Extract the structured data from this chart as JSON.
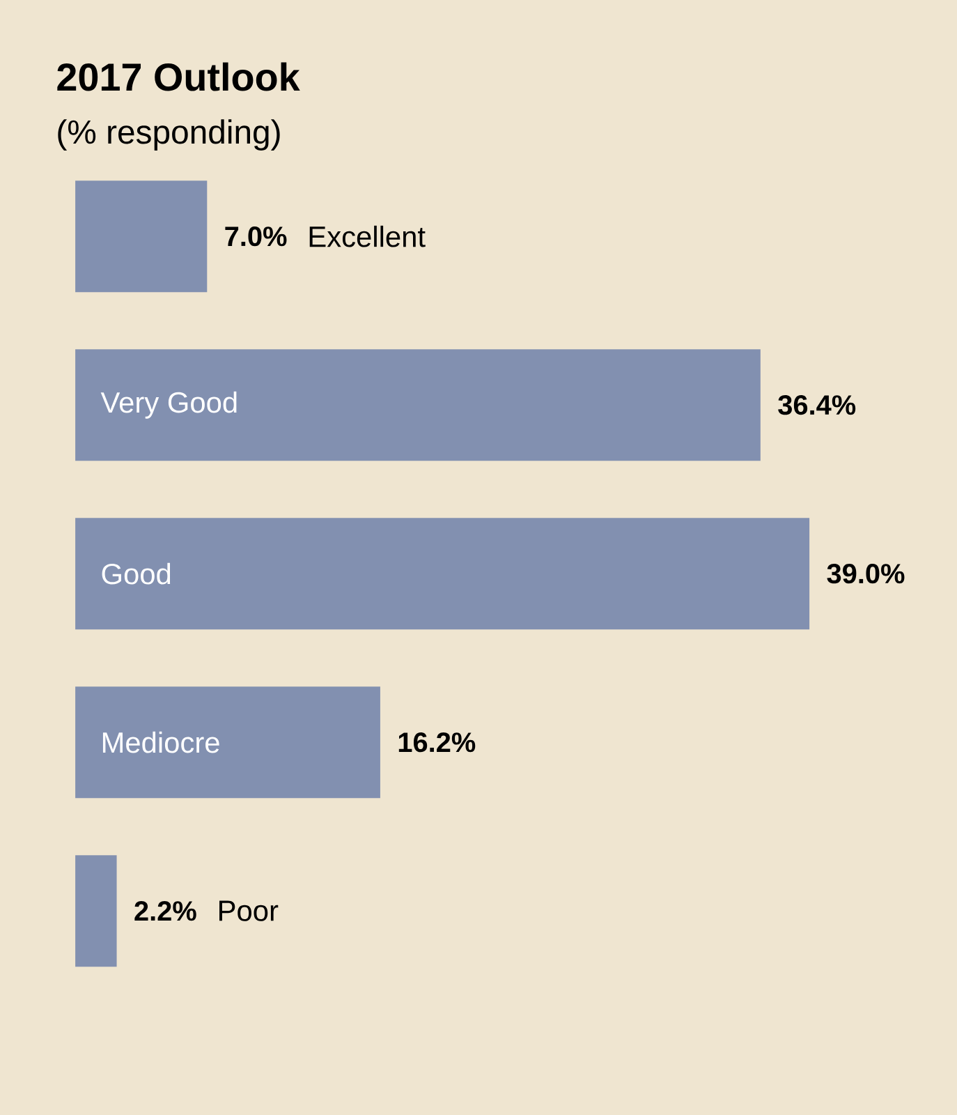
{
  "chart_data": {
    "type": "bar",
    "orientation": "horizontal",
    "title": "2017 Outlook",
    "subtitle": "(% responding)",
    "categories": [
      "Excellent",
      "Very Good",
      "Good",
      "Mediocre",
      "Poor"
    ],
    "values": [
      7.0,
      36.4,
      39.0,
      16.2,
      2.2
    ],
    "value_labels": [
      "7.0%",
      "36.4%",
      "39.0%",
      "16.2%",
      "2.2%"
    ],
    "color": "#8290b0"
  }
}
